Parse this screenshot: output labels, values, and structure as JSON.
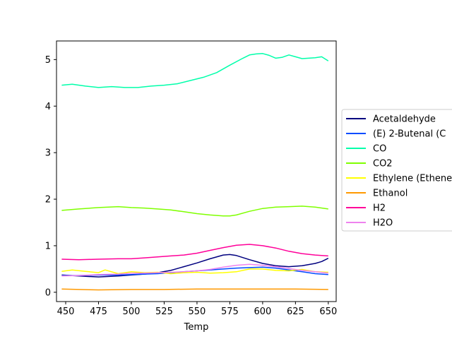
{
  "chart_data": {
    "type": "line",
    "title": "",
    "xlabel": "Temp",
    "ylabel": "",
    "xlim": [
      443,
      656
    ],
    "ylim": [
      -0.2,
      5.4
    ],
    "xticks": [
      450,
      475,
      500,
      525,
      550,
      575,
      600,
      625,
      650
    ],
    "yticks": [
      0,
      1,
      2,
      3,
      4,
      5
    ],
    "grid": false,
    "legend_position": "center-right, partially outside plot",
    "series": [
      {
        "name": "Acetaldehyde",
        "color": "#00007f",
        "x": [
          447,
          460,
          475,
          490,
          500,
          510,
          520,
          530,
          540,
          550,
          560,
          570,
          575,
          580,
          590,
          600,
          610,
          620,
          630,
          640,
          645,
          650
        ],
        "y": [
          0.37,
          0.35,
          0.33,
          0.35,
          0.37,
          0.39,
          0.42,
          0.47,
          0.55,
          0.63,
          0.72,
          0.8,
          0.81,
          0.79,
          0.7,
          0.62,
          0.57,
          0.55,
          0.57,
          0.62,
          0.66,
          0.73
        ]
      },
      {
        "name": "(E) 2-Butenal (C",
        "color": "#004cff",
        "x": [
          447,
          460,
          475,
          490,
          500,
          510,
          520,
          530,
          540,
          550,
          560,
          570,
          580,
          590,
          600,
          610,
          620,
          630,
          640,
          650
        ],
        "y": [
          0.36,
          0.36,
          0.37,
          0.37,
          0.38,
          0.39,
          0.4,
          0.42,
          0.44,
          0.46,
          0.48,
          0.5,
          0.52,
          0.53,
          0.54,
          0.52,
          0.48,
          0.44,
          0.4,
          0.38
        ]
      },
      {
        "name": "CO",
        "color": "#00ffaa",
        "x": [
          447,
          455,
          465,
          475,
          485,
          495,
          505,
          515,
          525,
          535,
          545,
          555,
          565,
          575,
          585,
          590,
          595,
          600,
          605,
          610,
          615,
          620,
          625,
          630,
          640,
          645,
          650
        ],
        "y": [
          4.45,
          4.47,
          4.43,
          4.4,
          4.42,
          4.4,
          4.4,
          4.43,
          4.45,
          4.48,
          4.55,
          4.62,
          4.72,
          4.88,
          5.03,
          5.1,
          5.12,
          5.13,
          5.09,
          5.03,
          5.05,
          5.1,
          5.06,
          5.02,
          5.04,
          5.06,
          4.97
        ]
      },
      {
        "name": "CO2",
        "color": "#7fff00",
        "x": [
          447,
          460,
          475,
          490,
          500,
          510,
          520,
          530,
          540,
          550,
          560,
          570,
          575,
          580,
          590,
          600,
          610,
          620,
          630,
          640,
          650
        ],
        "y": [
          1.76,
          1.79,
          1.82,
          1.84,
          1.82,
          1.81,
          1.79,
          1.77,
          1.73,
          1.69,
          1.66,
          1.64,
          1.64,
          1.66,
          1.74,
          1.8,
          1.83,
          1.84,
          1.85,
          1.83,
          1.79
        ]
      },
      {
        "name": "Ethylene (Ethene",
        "color": "#ffff00",
        "x": [
          447,
          455,
          465,
          475,
          480,
          490,
          500,
          510,
          520,
          530,
          540,
          550,
          560,
          570,
          580,
          590,
          600,
          610,
          620,
          630,
          640,
          650
        ],
        "y": [
          0.45,
          0.48,
          0.45,
          0.42,
          0.48,
          0.4,
          0.44,
          0.42,
          0.43,
          0.4,
          0.42,
          0.43,
          0.41,
          0.42,
          0.44,
          0.5,
          0.5,
          0.47,
          0.46,
          0.49,
          0.44,
          0.43
        ]
      },
      {
        "name": "Ethanol",
        "color": "#ff9900",
        "x": [
          447,
          475,
          500,
          525,
          550,
          575,
          600,
          625,
          650
        ],
        "y": [
          0.07,
          0.05,
          0.06,
          0.06,
          0.07,
          0.07,
          0.07,
          0.07,
          0.06
        ]
      },
      {
        "name": "H2",
        "color": "#ff0099",
        "x": [
          447,
          460,
          475,
          490,
          500,
          510,
          520,
          530,
          540,
          550,
          560,
          570,
          580,
          590,
          600,
          610,
          620,
          630,
          640,
          650
        ],
        "y": [
          0.71,
          0.7,
          0.71,
          0.72,
          0.72,
          0.74,
          0.76,
          0.78,
          0.8,
          0.84,
          0.9,
          0.96,
          1.01,
          1.03,
          1.0,
          0.95,
          0.88,
          0.83,
          0.8,
          0.78
        ]
      },
      {
        "name": "H2O",
        "color": "#ee82ee",
        "x": [
          447,
          460,
          475,
          490,
          500,
          510,
          520,
          530,
          540,
          550,
          560,
          570,
          580,
          590,
          600,
          610,
          620,
          630,
          640,
          650
        ],
        "y": [
          0.35,
          0.36,
          0.38,
          0.39,
          0.41,
          0.41,
          0.42,
          0.43,
          0.44,
          0.46,
          0.49,
          0.54,
          0.58,
          0.6,
          0.58,
          0.55,
          0.51,
          0.47,
          0.44,
          0.41
        ]
      }
    ]
  }
}
